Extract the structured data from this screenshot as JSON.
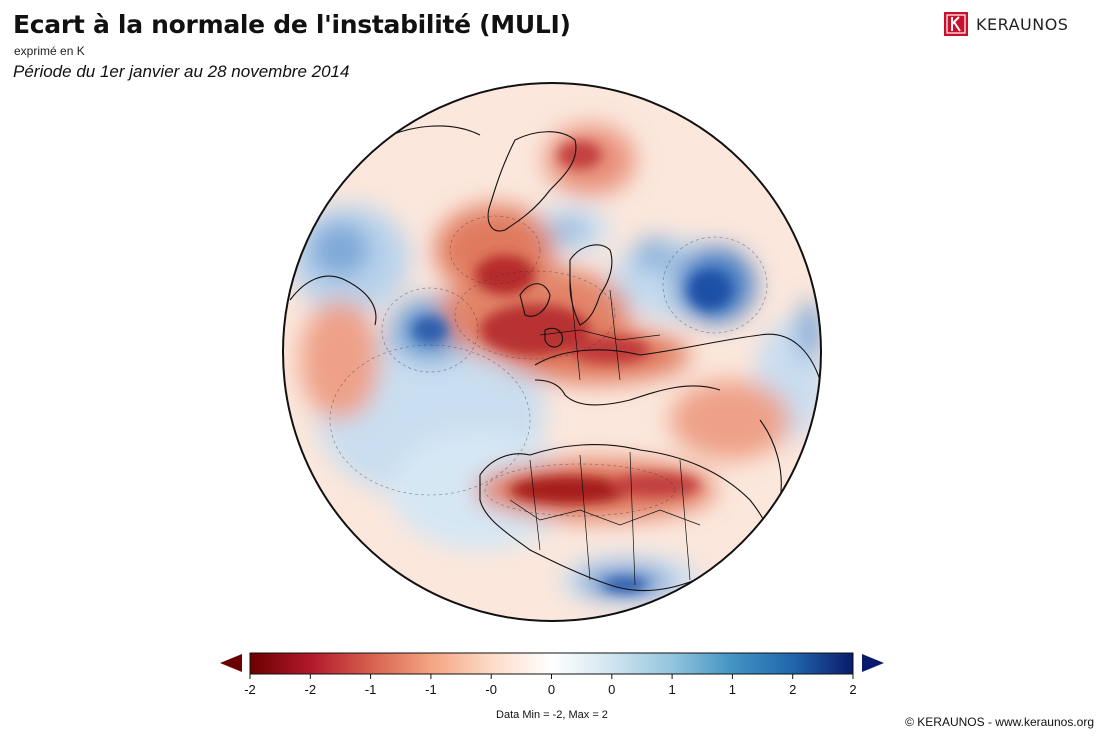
{
  "header": {
    "title": "Ecart à la normale de l'instabilité (MULI)",
    "subtitle": "exprimé en K",
    "period": "Période du 1er janvier au 28 novembre 2014"
  },
  "brand": {
    "logo_text": "KERAUNOS",
    "logo_letter": "K",
    "logo_color": "#c8102e"
  },
  "map": {
    "projection": "orthographic",
    "region": "North Atlantic, Europe, Africa",
    "anomaly_areas": [
      {
        "label": "warm-anomaly",
        "color": "#b2182b"
      },
      {
        "label": "cold-anomaly",
        "color": "#2166ac"
      }
    ]
  },
  "colorbar": {
    "tick_labels": [
      "-2",
      "-2",
      "-1",
      "-1",
      "-0",
      "0",
      "0",
      "1",
      "1",
      "2",
      "2"
    ],
    "colors": [
      "#6b0000",
      "#b2182b",
      "#d6604d",
      "#f4a582",
      "#fddbc7",
      "#ffffff",
      "#d1e5f0",
      "#92c5de",
      "#4393c3",
      "#2166ac",
      "#0a1a6b"
    ],
    "min_arrow_color": "#6b0000",
    "max_arrow_color": "#0a1a6b"
  },
  "footer": {
    "data_minmax": "Data Min = -2, Max = 2",
    "credit": "© KERAUNOS - www.keraunos.org"
  }
}
